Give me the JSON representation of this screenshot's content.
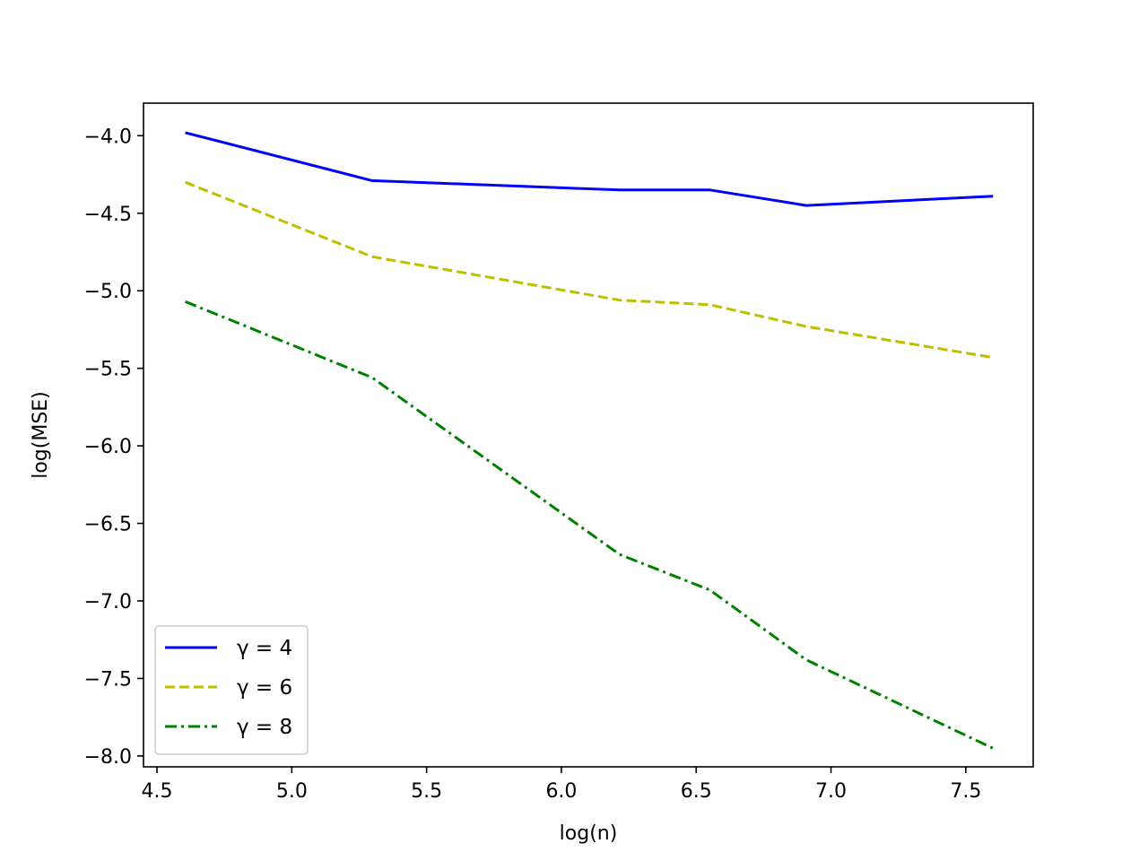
{
  "chart_data": {
    "type": "line",
    "title": "",
    "xlabel": "log(n)",
    "ylabel": "log(MSE)",
    "xlim": [
      4.45,
      7.75
    ],
    "ylim": [
      -8.07,
      -3.79
    ],
    "xticks": [
      4.5,
      5.0,
      5.5,
      6.0,
      6.5,
      7.0,
      7.5
    ],
    "xtick_labels": [
      "4.5",
      "5.0",
      "5.5",
      "6.0",
      "6.5",
      "7.0",
      "7.5"
    ],
    "yticks": [
      -4.0,
      -4.5,
      -5.0,
      -5.5,
      -6.0,
      -6.5,
      -7.0,
      -7.5,
      -8.0
    ],
    "ytick_labels": [
      "−4.0",
      "−4.5",
      "−5.0",
      "−5.5",
      "−6.0",
      "−6.5",
      "−7.0",
      "−7.5",
      "−8.0"
    ],
    "grid": false,
    "legend_position": "lower-left",
    "x": [
      4.605,
      5.298,
      6.215,
      6.551,
      6.908,
      7.601
    ],
    "series": [
      {
        "name": "γ = 4",
        "color": "#0000ff",
        "style": "solid",
        "values": [
          -3.98,
          -4.29,
          -4.35,
          -4.35,
          -4.45,
          -4.39
        ]
      },
      {
        "name": "γ = 6",
        "color": "#bfbf00",
        "style": "dashed",
        "values": [
          -4.3,
          -4.78,
          -5.06,
          -5.09,
          -5.23,
          -5.43
        ]
      },
      {
        "name": "γ = 8",
        "color": "#008000",
        "style": "dashdot",
        "values": [
          -5.07,
          -5.56,
          -6.7,
          -6.93,
          -7.38,
          -7.95
        ]
      }
    ]
  }
}
